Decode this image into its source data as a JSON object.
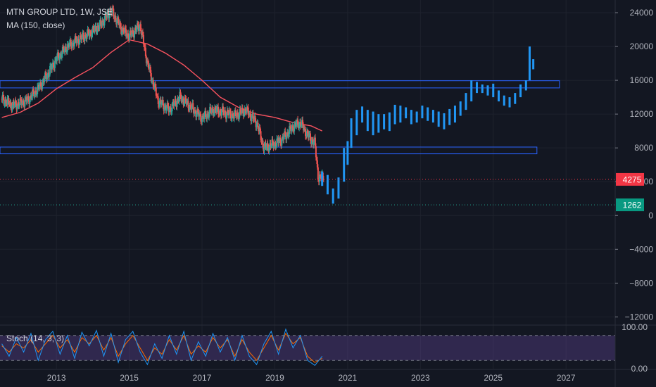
{
  "legend": {
    "title": "MTN GROUP LTD, 1W, JSE",
    "ma": "MA (150, close)",
    "stoch": "Stoch (14, 3, 3)"
  },
  "chart_data": {
    "type": "candlestick",
    "title": "MTN GROUP LTD, 1W, JSE",
    "x_ticks": [
      "2013",
      "2015",
      "2017",
      "2019",
      "2021",
      "2023",
      "2025",
      "2027"
    ],
    "y_ticks": [
      "24000",
      "20000",
      "16000",
      "12000",
      "8000",
      "4000",
      "0",
      "−4000",
      "−8000",
      "−12000"
    ],
    "y_range": [
      -12800,
      25500
    ],
    "x_range": [
      2011.45,
      2028.35
    ],
    "price_labels": [
      {
        "text": "4275",
        "value": 4275,
        "color": "#f23645"
      },
      {
        "text": "1262",
        "value": 1262,
        "color": "#089981"
      }
    ],
    "horizontal_lines": [
      {
        "value": 4275,
        "color": "#f23645",
        "style": "dotted"
      },
      {
        "value": 1262,
        "color": "#22ab94",
        "style": "dotted"
      }
    ],
    "zones": [
      {
        "x_from": 2011.45,
        "x_to": 2026.82,
        "y_from": 15100,
        "y_to": 15950
      },
      {
        "x_from": 2011.45,
        "x_to": 2026.2,
        "y_from": 7300,
        "y_to": 8100
      }
    ],
    "colors": {
      "up": "#26a69a",
      "down": "#ef5350",
      "ma": "#f7525f",
      "projection": "#2196f3",
      "zone": "#2962ff"
    },
    "historical_path": [
      [
        2011.5,
        13800
      ],
      [
        2011.8,
        13000
      ],
      [
        2012.2,
        13600
      ],
      [
        2012.5,
        15000
      ],
      [
        2012.8,
        17000
      ],
      [
        2013.0,
        18500
      ],
      [
        2013.3,
        20000
      ],
      [
        2013.6,
        20800
      ],
      [
        2013.9,
        21500
      ],
      [
        2014.2,
        22500
      ],
      [
        2014.5,
        24300
      ],
      [
        2014.8,
        22000
      ],
      [
        2015.0,
        21200
      ],
      [
        2015.3,
        22500
      ],
      [
        2015.5,
        18000
      ],
      [
        2015.8,
        13500
      ],
      [
        2016.1,
        12500
      ],
      [
        2016.4,
        14000
      ],
      [
        2016.7,
        12800
      ],
      [
        2017.0,
        11500
      ],
      [
        2017.3,
        12500
      ],
      [
        2017.6,
        12200
      ],
      [
        2017.9,
        11800
      ],
      [
        2018.2,
        12500
      ],
      [
        2018.5,
        11000
      ],
      [
        2018.7,
        8000
      ],
      [
        2019.0,
        8500
      ],
      [
        2019.2,
        9000
      ],
      [
        2019.5,
        10500
      ],
      [
        2019.7,
        11000
      ],
      [
        2019.9,
        9500
      ],
      [
        2020.1,
        8500
      ],
      [
        2020.2,
        4300
      ],
      [
        2020.35,
        4800
      ]
    ],
    "ma_path": [
      [
        2011.5,
        11600
      ],
      [
        2012.0,
        12200
      ],
      [
        2012.5,
        13300
      ],
      [
        2013.0,
        15000
      ],
      [
        2013.5,
        16300
      ],
      [
        2014.0,
        17500
      ],
      [
        2014.5,
        19300
      ],
      [
        2015.0,
        20800
      ],
      [
        2015.5,
        20300
      ],
      [
        2016.0,
        19200
      ],
      [
        2016.5,
        17800
      ],
      [
        2017.0,
        16000
      ],
      [
        2017.5,
        14000
      ],
      [
        2018.0,
        12800
      ],
      [
        2018.5,
        12000
      ],
      [
        2019.0,
        11600
      ],
      [
        2019.5,
        11000
      ],
      [
        2020.0,
        10600
      ],
      [
        2020.3,
        10000
      ]
    ],
    "projection_bars": [
      [
        2020.3,
        3500,
        5200
      ],
      [
        2020.45,
        2500,
        4800
      ],
      [
        2020.6,
        1400,
        3200
      ],
      [
        2020.75,
        2000,
        4500
      ],
      [
        2020.9,
        4000,
        8000
      ],
      [
        2021.0,
        6000,
        8800
      ],
      [
        2021.1,
        8000,
        11500
      ],
      [
        2021.25,
        9500,
        12500
      ],
      [
        2021.4,
        11000,
        12900
      ],
      [
        2021.55,
        10000,
        12500
      ],
      [
        2021.7,
        9500,
        12300
      ],
      [
        2021.85,
        9800,
        12000
      ],
      [
        2022.0,
        10200,
        12000
      ],
      [
        2022.15,
        10000,
        12200
      ],
      [
        2022.3,
        10800,
        13100
      ],
      [
        2022.45,
        11000,
        13000
      ],
      [
        2022.6,
        11500,
        12800
      ],
      [
        2022.75,
        10800,
        12500
      ],
      [
        2022.9,
        11000,
        12300
      ],
      [
        2023.05,
        11500,
        13000
      ],
      [
        2023.2,
        11200,
        12800
      ],
      [
        2023.35,
        11000,
        12500
      ],
      [
        2023.5,
        10500,
        12300
      ],
      [
        2023.65,
        10200,
        12100
      ],
      [
        2023.8,
        10700,
        12600
      ],
      [
        2023.95,
        11000,
        13000
      ],
      [
        2024.1,
        11800,
        13500
      ],
      [
        2024.25,
        12500,
        14500
      ],
      [
        2024.4,
        13500,
        16000
      ],
      [
        2024.55,
        14500,
        15800
      ],
      [
        2024.7,
        14500,
        15500
      ],
      [
        2024.85,
        14200,
        15400
      ],
      [
        2025.0,
        14000,
        15600
      ],
      [
        2025.15,
        13500,
        14800
      ],
      [
        2025.3,
        13000,
        14200
      ],
      [
        2025.45,
        12800,
        14000
      ],
      [
        2025.6,
        13200,
        14500
      ],
      [
        2025.75,
        14000,
        15500
      ],
      [
        2025.9,
        14800,
        16000
      ],
      [
        2026.0,
        16000,
        20000
      ],
      [
        2026.1,
        17300,
        18500
      ]
    ],
    "stochastic": {
      "label": "Stoch (14, 3, 3)",
      "y_ticks": [
        "100.00",
        "0.00"
      ],
      "bands": [
        20,
        80
      ],
      "colors": {
        "k": "#2196f3",
        "d": "#ff6d00",
        "band_fill": "#7e57c2"
      },
      "k": [
        [
          2011.5,
          60
        ],
        [
          2011.7,
          30
        ],
        [
          2011.9,
          75
        ],
        [
          2012.1,
          40
        ],
        [
          2012.3,
          85
        ],
        [
          2012.5,
          20
        ],
        [
          2012.7,
          70
        ],
        [
          2012.9,
          90
        ],
        [
          2013.1,
          35
        ],
        [
          2013.3,
          80
        ],
        [
          2013.5,
          25
        ],
        [
          2013.7,
          88
        ],
        [
          2013.9,
          55
        ],
        [
          2014.1,
          92
        ],
        [
          2014.3,
          30
        ],
        [
          2014.5,
          85
        ],
        [
          2014.7,
          15
        ],
        [
          2014.9,
          70
        ],
        [
          2015.1,
          90
        ],
        [
          2015.3,
          40
        ],
        [
          2015.5,
          10
        ],
        [
          2015.7,
          60
        ],
        [
          2015.9,
          25
        ],
        [
          2016.1,
          80
        ],
        [
          2016.3,
          35
        ],
        [
          2016.5,
          90
        ],
        [
          2016.7,
          20
        ],
        [
          2016.9,
          65
        ],
        [
          2017.1,
          30
        ],
        [
          2017.3,
          85
        ],
        [
          2017.5,
          40
        ],
        [
          2017.7,
          75
        ],
        [
          2017.9,
          20
        ],
        [
          2018.1,
          80
        ],
        [
          2018.3,
          30
        ],
        [
          2018.5,
          10
        ],
        [
          2018.7,
          60
        ],
        [
          2018.9,
          90
        ],
        [
          2019.1,
          35
        ],
        [
          2019.3,
          95
        ],
        [
          2019.5,
          50
        ],
        [
          2019.7,
          80
        ],
        [
          2019.9,
          20
        ],
        [
          2020.1,
          8
        ],
        [
          2020.3,
          30
        ]
      ],
      "d": [
        [
          2011.5,
          55
        ],
        [
          2011.7,
          40
        ],
        [
          2011.9,
          60
        ],
        [
          2012.1,
          50
        ],
        [
          2012.3,
          70
        ],
        [
          2012.5,
          40
        ],
        [
          2012.7,
          60
        ],
        [
          2012.9,
          80
        ],
        [
          2013.1,
          50
        ],
        [
          2013.3,
          70
        ],
        [
          2013.5,
          40
        ],
        [
          2013.7,
          75
        ],
        [
          2013.9,
          60
        ],
        [
          2014.1,
          80
        ],
        [
          2014.3,
          45
        ],
        [
          2014.5,
          75
        ],
        [
          2014.7,
          30
        ],
        [
          2014.9,
          60
        ],
        [
          2015.1,
          80
        ],
        [
          2015.3,
          50
        ],
        [
          2015.5,
          20
        ],
        [
          2015.7,
          50
        ],
        [
          2015.9,
          35
        ],
        [
          2016.1,
          70
        ],
        [
          2016.3,
          45
        ],
        [
          2016.5,
          80
        ],
        [
          2016.7,
          35
        ],
        [
          2016.9,
          55
        ],
        [
          2017.1,
          40
        ],
        [
          2017.3,
          75
        ],
        [
          2017.5,
          50
        ],
        [
          2017.7,
          70
        ],
        [
          2017.9,
          30
        ],
        [
          2018.1,
          70
        ],
        [
          2018.3,
          40
        ],
        [
          2018.5,
          20
        ],
        [
          2018.7,
          50
        ],
        [
          2018.9,
          80
        ],
        [
          2019.1,
          45
        ],
        [
          2019.3,
          85
        ],
        [
          2019.5,
          60
        ],
        [
          2019.7,
          75
        ],
        [
          2019.9,
          30
        ],
        [
          2020.1,
          15
        ],
        [
          2020.3,
          25
        ]
      ]
    }
  }
}
